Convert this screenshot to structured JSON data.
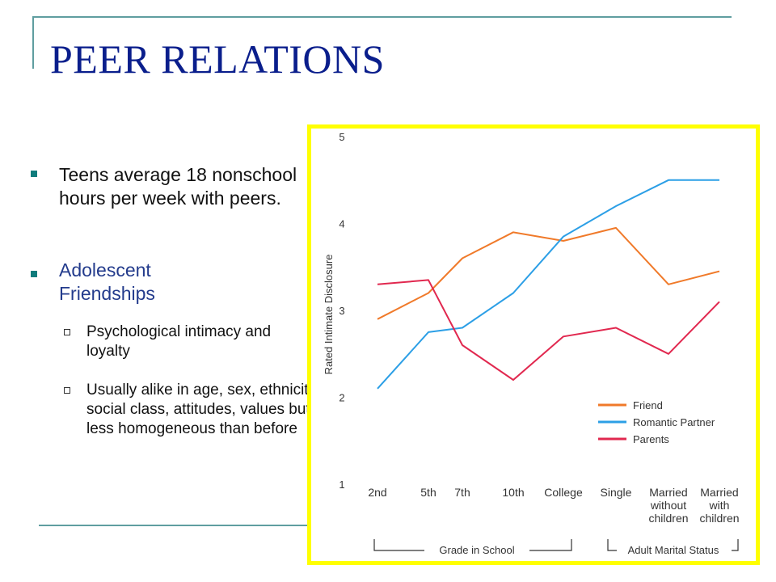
{
  "slide": {
    "title": "PEER RELATIONS",
    "bullets": [
      {
        "text": "Teens average 18 nonschool hours per week with peers."
      },
      {
        "text": "Adolescent Friendships"
      }
    ],
    "sub_bullets": [
      {
        "text": "Psychological intimacy and loyalty"
      },
      {
        "text": "Usually alike in age, sex, ethnicity, social class, attitudes, values but less homogeneous than before"
      }
    ]
  },
  "chart_data": {
    "type": "line",
    "ylabel": "Rated Intimate Disclosure",
    "ylim": [
      1,
      5
    ],
    "yticks": [
      "1",
      "2",
      "3",
      "4",
      "5"
    ],
    "categories": [
      "2nd",
      "5th",
      "7th",
      "10th",
      "College",
      "Single",
      "Married without children",
      "Married with children"
    ],
    "category_labels": [
      [
        "2nd"
      ],
      [
        "5th"
      ],
      [
        "7th"
      ],
      [
        "10th"
      ],
      [
        "College"
      ],
      [
        "Single"
      ],
      [
        "Married",
        "without",
        "children"
      ],
      [
        "Married",
        "with",
        "children"
      ]
    ],
    "groups": [
      "Grade in School",
      "Adult Marital Status"
    ],
    "series": [
      {
        "name": "Friend",
        "color": "#f07a2a",
        "values": [
          2.9,
          3.2,
          3.6,
          3.9,
          3.8,
          3.95,
          3.3,
          3.45
        ]
      },
      {
        "name": "Romantic Partner",
        "color": "#2c9fe6",
        "values": [
          2.1,
          2.75,
          2.8,
          3.2,
          3.85,
          4.2,
          4.5,
          4.5
        ]
      },
      {
        "name": "Parents",
        "color": "#e1284f",
        "values": [
          3.3,
          3.35,
          2.6,
          2.2,
          2.7,
          2.8,
          2.5,
          3.1
        ]
      }
    ]
  }
}
